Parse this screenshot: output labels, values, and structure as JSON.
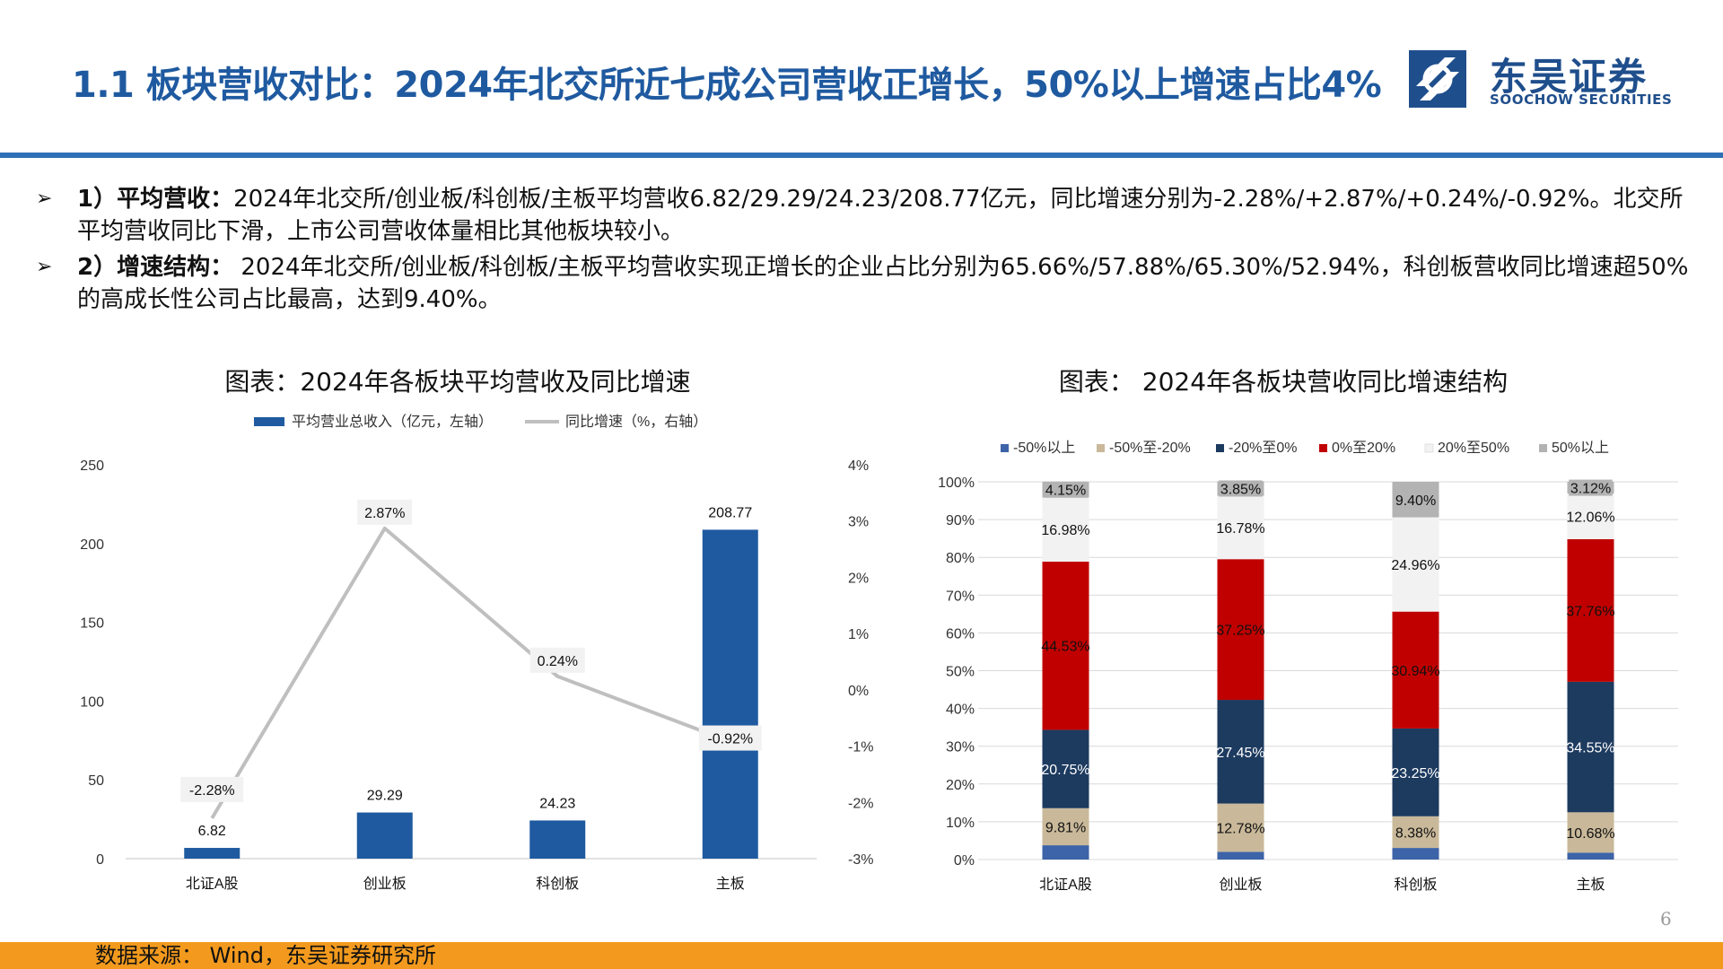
{
  "header": {
    "title": "1.1 板块营收对比：2024年北交所近七成公司营收正增长，50%以上增速占比4%",
    "logo_cn": "东吴证券",
    "logo_en": "SOOCHOW SECURITIES"
  },
  "bullets": [
    {
      "lead": "1）平均营收：",
      "text": "2024年北交所/创业板/科创板/主板平均营收6.82/29.29/24.23/208.77亿元，同比增速分别为-2.28%/+2.87%/+0.24%/-0.92%。北交所平均营收同比下滑，上市公司营收体量相比其他板块较小。"
    },
    {
      "lead": "2）增速结构：",
      "text": " 2024年北交所/创业板/科创板/主板平均营收实现正增长的企业占比分别为65.66%/57.88%/65.30%/52.94%，科创板营收同比增速超50%的高成长性公司占比最高，达到9.40%。"
    }
  ],
  "bullet_marker": "➢",
  "chart_data": [
    {
      "type": "bar",
      "title": "图表：2024年各板块平均营收及同比增速",
      "categories": [
        "北证A股",
        "创业板",
        "科创板",
        "主板"
      ],
      "series": [
        {
          "name": "平均营业总收入（亿元，左轴）",
          "values": [
            6.82,
            29.29,
            24.23,
            208.77
          ],
          "labels": [
            "6.82",
            "29.29",
            "24.23",
            "208.77"
          ],
          "color": "#1f5aa0"
        },
        {
          "name": "同比增速（%，右轴）",
          "values": [
            -2.28,
            2.87,
            0.24,
            -0.92
          ],
          "labels": [
            "-2.28%",
            "2.87%",
            "0.24%",
            "-0.92%"
          ],
          "color": "#bfbfbf",
          "kind": "line"
        }
      ],
      "ylim_left": [
        0,
        250
      ],
      "yticks_left": [
        "0",
        "50",
        "100",
        "150",
        "200",
        "250"
      ],
      "ylim_right": [
        -3,
        4
      ],
      "yticks_right": [
        "-3%",
        "-2%",
        "-1%",
        "0%",
        "1%",
        "2%",
        "3%",
        "4%"
      ],
      "legend_position": "top",
      "grid": false
    },
    {
      "type": "bar",
      "stacked": true,
      "title": "图表： 2024年各板块营收同比增速结构",
      "categories": [
        "北证A股",
        "创业板",
        "科创板",
        "主板"
      ],
      "series": [
        {
          "name": "-50%以上",
          "values": [
            3.78,
            2.04,
            3.07,
            1.83
          ],
          "labels": [
            "",
            "",
            "",
            ""
          ],
          "color": "#3d63a8"
        },
        {
          "name": "-50%至-20%",
          "values": [
            9.81,
            12.78,
            8.38,
            10.68
          ],
          "labels": [
            "9.81%",
            "12.78%",
            "8.38%",
            "10.68%"
          ],
          "color": "#c9b99a"
        },
        {
          "name": "-20%至0%",
          "values": [
            20.75,
            27.45,
            23.25,
            34.55
          ],
          "labels": [
            "20.75%",
            "27.45%",
            "23.25%",
            "34.55%"
          ],
          "color": "#1d3a5f"
        },
        {
          "name": "0%至20%",
          "values": [
            44.53,
            37.25,
            30.94,
            37.76
          ],
          "labels": [
            "44.53%",
            "37.25%",
            "30.94%",
            "37.76%"
          ],
          "color": "#c00000"
        },
        {
          "name": "20%至50%",
          "values": [
            16.98,
            16.78,
            24.96,
            12.06
          ],
          "labels": [
            "16.98%",
            "16.78%",
            "24.96%",
            "12.06%"
          ],
          "color": "#f2f2f2"
        },
        {
          "name": "50%以上",
          "values": [
            4.15,
            3.85,
            9.4,
            3.12
          ],
          "labels": [
            "4.15%",
            "3.85%",
            "9.40%",
            "3.12%"
          ],
          "color": "#b3b3b3"
        }
      ],
      "ylim": [
        0,
        100
      ],
      "yticks": [
        "0%",
        "10%",
        "20%",
        "30%",
        "40%",
        "50%",
        "60%",
        "70%",
        "80%",
        "90%",
        "100%"
      ],
      "legend_position": "top",
      "grid": true
    }
  ],
  "page_number": "6",
  "footer": {
    "source": "数据来源： Wind，东吴证券研究所"
  }
}
